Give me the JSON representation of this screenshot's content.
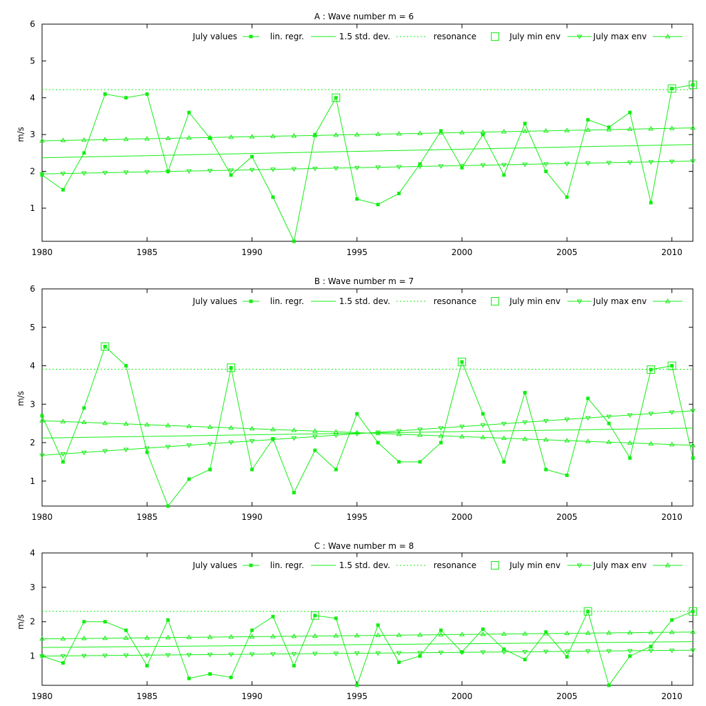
{
  "colors": {
    "series": "#11ee11",
    "frame": "#000000",
    "background": "#ffffff"
  },
  "chart_data": [
    {
      "type": "line",
      "title": "A : Wave number m = 6",
      "xlabel": "",
      "ylabel": "m/s",
      "xlim": [
        1980,
        2011
      ],
      "ylim": [
        0.1,
        6
      ],
      "x_ticks": [
        1980,
        1985,
        1990,
        1995,
        2000,
        2005,
        2010
      ],
      "y_ticks": [
        1,
        2,
        3,
        4,
        5,
        6
      ],
      "legend_position": "top",
      "legend": [
        "July values",
        "lin. regr.",
        "1.5 std. dev.",
        "resonance",
        "July min env",
        "July max env"
      ],
      "years": [
        1980,
        1981,
        1982,
        1983,
        1984,
        1985,
        1986,
        1987,
        1988,
        1989,
        1990,
        1991,
        1992,
        1993,
        1994,
        1995,
        1996,
        1997,
        1998,
        1999,
        2000,
        2001,
        2002,
        2003,
        2004,
        2005,
        2006,
        2007,
        2008,
        2009,
        2010,
        2011
      ],
      "values": [
        1.9,
        1.5,
        2.5,
        4.1,
        4.0,
        4.1,
        2.0,
        3.6,
        2.9,
        1.9,
        2.4,
        1.3,
        0.1,
        3.0,
        4.0,
        1.25,
        1.1,
        1.4,
        2.2,
        3.1,
        2.1,
        3.0,
        1.9,
        3.3,
        2.0,
        1.3,
        3.4,
        3.2,
        3.6,
        1.15,
        4.25,
        4.35
      ],
      "lin_regr": [
        2.37,
        2.73
      ],
      "max_env": [
        2.83,
        3.18
      ],
      "min_env": [
        1.93,
        2.28
      ],
      "resonance": 4.22,
      "resonance_years": [
        1994,
        2010,
        2011
      ]
    },
    {
      "type": "line",
      "title": "B : Wave number m = 7",
      "xlabel": "",
      "ylabel": "m/s",
      "xlim": [
        1980,
        2011
      ],
      "ylim": [
        0.35,
        6
      ],
      "x_ticks": [
        1980,
        1985,
        1990,
        1995,
        2000,
        2005,
        2010
      ],
      "y_ticks": [
        1,
        2,
        3,
        4,
        5,
        6
      ],
      "legend_position": "top",
      "legend": [
        "July values",
        "lin. regr.",
        "1.5 std. dev.",
        "resonance",
        "July min env",
        "July max env"
      ],
      "years": [
        1980,
        1981,
        1982,
        1983,
        1984,
        1985,
        1986,
        1987,
        1988,
        1989,
        1990,
        1991,
        1992,
        1993,
        1994,
        1995,
        1996,
        1997,
        1998,
        1999,
        2000,
        2001,
        2002,
        2003,
        2004,
        2005,
        2006,
        2007,
        2008,
        2009,
        2010,
        2011
      ],
      "values": [
        2.7,
        1.5,
        2.9,
        4.5,
        4.0,
        1.75,
        0.35,
        1.05,
        1.3,
        3.95,
        1.3,
        2.1,
        0.7,
        1.8,
        1.3,
        2.75,
        2.0,
        1.5,
        1.5,
        2.0,
        4.1,
        2.75,
        1.5,
        3.3,
        1.3,
        1.15,
        3.15,
        2.5,
        1.6,
        3.9,
        4.0,
        1.6
      ],
      "lin_regr": [
        2.12,
        2.38
      ],
      "max_env": [
        2.57,
        1.93
      ],
      "min_env": [
        1.67,
        2.83
      ],
      "resonance": 3.91,
      "resonance_years": [
        1983,
        1989,
        2000,
        2009,
        2010
      ]
    },
    {
      "type": "line",
      "title": "C : Wave number m = 8",
      "xlabel": "",
      "ylabel": "m/s",
      "xlim": [
        1980,
        2011
      ],
      "ylim": [
        0.15,
        4
      ],
      "x_ticks": [
        1980,
        1985,
        1990,
        1995,
        2000,
        2005,
        2010
      ],
      "y_ticks": [
        1,
        2,
        3,
        4
      ],
      "legend_position": "top",
      "legend": [
        "July values",
        "lin. regr.",
        "1.5 std. dev.",
        "resonance",
        "July min env",
        "July max env"
      ],
      "years": [
        1980,
        1981,
        1982,
        1983,
        1984,
        1985,
        1986,
        1987,
        1988,
        1989,
        1990,
        1991,
        1992,
        1993,
        1994,
        1995,
        1996,
        1997,
        1998,
        1999,
        2000,
        2001,
        2002,
        2003,
        2004,
        2005,
        2006,
        2007,
        2008,
        2009,
        2010,
        2011
      ],
      "values": [
        1.0,
        0.8,
        2.0,
        2.0,
        1.75,
        0.72,
        2.05,
        0.35,
        0.48,
        0.38,
        1.75,
        2.15,
        0.72,
        2.18,
        2.1,
        0.15,
        1.9,
        0.82,
        1.0,
        1.75,
        1.12,
        1.78,
        1.2,
        0.9,
        1.7,
        0.98,
        2.3,
        0.15,
        1.0,
        1.28,
        2.05,
        2.3
      ],
      "lin_regr": [
        1.25,
        1.42
      ],
      "max_env": [
        1.5,
        1.7
      ],
      "min_env": [
        1.0,
        1.17
      ],
      "resonance": 2.3,
      "resonance_years": [
        1993,
        2006,
        2011
      ]
    }
  ]
}
